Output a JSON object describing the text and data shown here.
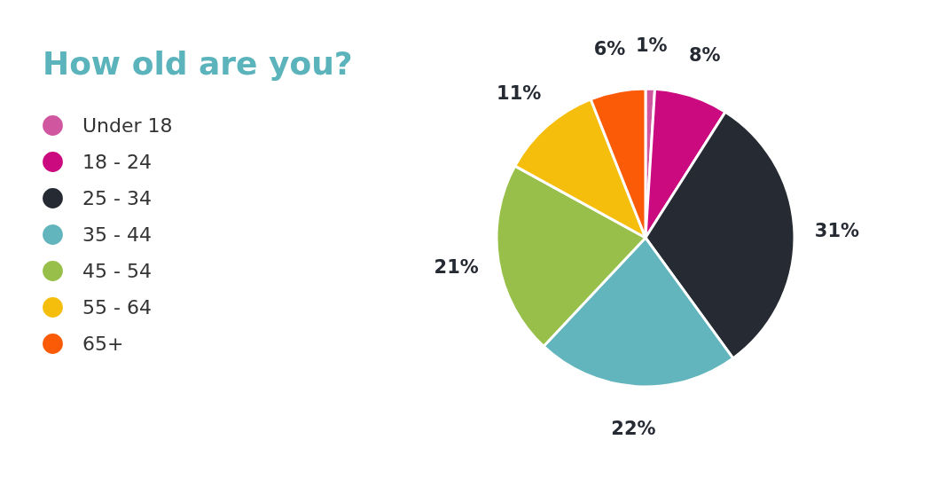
{
  "chart_data": {
    "type": "pie",
    "title": "How old are you?",
    "categories": [
      "Under 18",
      "18 - 24",
      "25 - 34",
      "35 - 44",
      "45 - 54",
      "55 - 64",
      "65+"
    ],
    "values": [
      1,
      8,
      31,
      22,
      21,
      11,
      6
    ],
    "value_labels": [
      "1%",
      "8%",
      "31%",
      "22%",
      "21%",
      "11%",
      "6%"
    ],
    "colors": [
      "#d0579f",
      "#cc0a7f",
      "#262a33",
      "#62b5bd",
      "#97bf4a",
      "#f6be0c",
      "#fb5a06"
    ],
    "legend": "left"
  }
}
